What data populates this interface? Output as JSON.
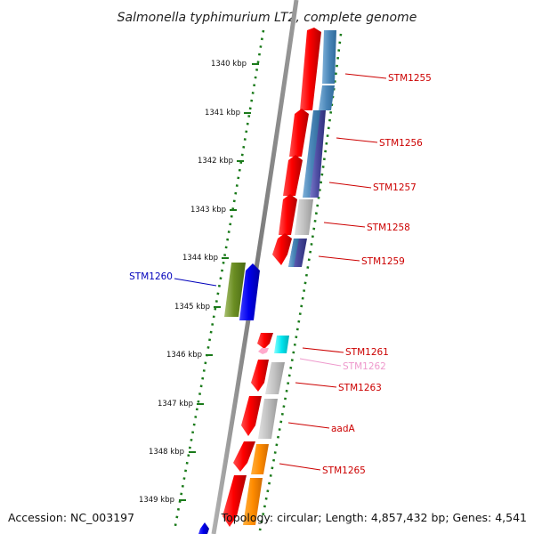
{
  "title": "Salmonella typhimurium LT2, complete genome",
  "footer": {
    "accession": "Accession: NC_003197",
    "topology": "Topology: circular; Length: 4,857,432 bp; Genes: 4,541"
  },
  "scale": {
    "ticks": [
      {
        "label": "1340 kbp"
      },
      {
        "label": "1341 kbp"
      },
      {
        "label": "1342 kbp"
      },
      {
        "label": "1343 kbp"
      },
      {
        "label": "1344 kbp"
      },
      {
        "label": "1345 kbp"
      },
      {
        "label": "1346 kbp"
      },
      {
        "label": "1347 kbp"
      },
      {
        "label": "1348 kbp"
      },
      {
        "label": "1349 kbp"
      }
    ]
  },
  "genes": [
    {
      "name": "STM1255",
      "color": "#cc0000"
    },
    {
      "name": "STM1256",
      "color": "#cc0000"
    },
    {
      "name": "STM1257",
      "color": "#cc0000"
    },
    {
      "name": "STM1258",
      "color": "#cc0000"
    },
    {
      "name": "STM1259",
      "color": "#cc0000"
    },
    {
      "name": "STM1260",
      "color": "#0000bb"
    },
    {
      "name": "STM1261",
      "color": "#cc0000"
    },
    {
      "name": "STM1262",
      "color": "#ee99cc"
    },
    {
      "name": "STM1263",
      "color": "#cc0000"
    },
    {
      "name": "aadA",
      "color": "#cc0000"
    },
    {
      "name": "STM1265",
      "color": "#cc0000"
    }
  ],
  "colors": {
    "backbone": "#8a8a8a",
    "dotted_track": "#1a7a1a",
    "forward_gene": "#ff0000",
    "reverse_gene": "#0000ee",
    "green_feature": "#6b8e23",
    "cyan_feature": "#00e5ee",
    "pink_feature": "#ffaacc",
    "steelblue_feature": "#4a86b8",
    "slateblue_feature": "#4b4ba0",
    "grey_feature": "#bdbdbd",
    "orange_feature": "#ff8c00"
  }
}
